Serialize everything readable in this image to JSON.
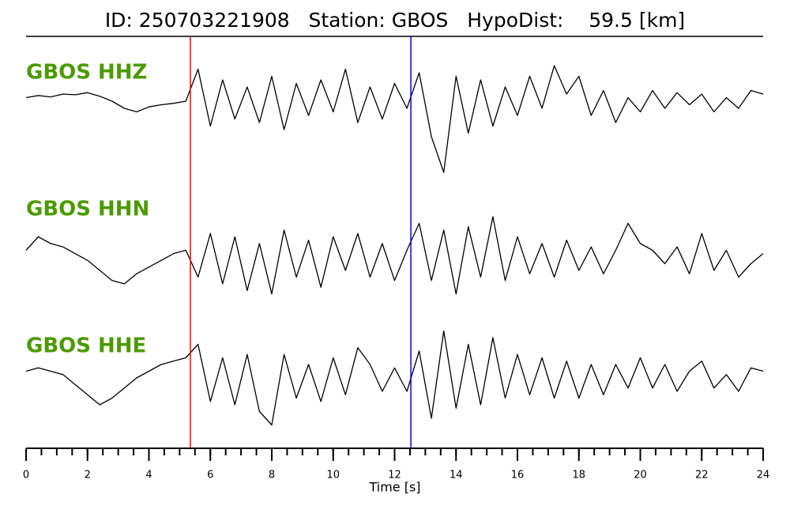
{
  "chart_data": {
    "type": "line",
    "title": "ID: 250703221908   Station: GBOS   HypoDist:    59.5 [km]",
    "xlabel": "Time [s]",
    "xlim": [
      0,
      24
    ],
    "xticks": [
      0,
      2,
      4,
      6,
      8,
      10,
      12,
      14,
      16,
      18,
      20,
      22,
      24
    ],
    "xminorticks": [
      0,
      0.5,
      1,
      1.5,
      2,
      2.5,
      3,
      3.5,
      4,
      4.5,
      5,
      5.5,
      6,
      6.5,
      7,
      7.5,
      8,
      8.5,
      9,
      9.5,
      10,
      10.5,
      11,
      11.5,
      12,
      12.5,
      13,
      13.5,
      14,
      14.5,
      15,
      15.5,
      16,
      16.5,
      17,
      17.5,
      18,
      18.5,
      19,
      19.5,
      20,
      20.5,
      21,
      21.5,
      22,
      22.5,
      23,
      23.5,
      24
    ],
    "ylim": [
      -1,
      1
    ],
    "label_color": "#4c9a00",
    "picks": [
      {
        "x": 5.35,
        "color": "#ff0000"
      },
      {
        "x": 12.53,
        "color": "#0000ff"
      }
    ],
    "x": [
      0,
      0.4,
      0.8,
      1.2,
      1.6,
      2,
      2.4,
      2.8,
      3.2,
      3.6,
      4,
      4.4,
      4.8,
      5.2,
      5.6,
      6,
      6.4,
      6.8,
      7.2,
      7.6,
      8,
      8.4,
      8.8,
      9.2,
      9.6,
      10,
      10.4,
      10.8,
      11.2,
      11.6,
      12,
      12.4,
      12.8,
      13.2,
      13.6,
      14,
      14.4,
      14.8,
      15.2,
      15.6,
      16,
      16.4,
      16.8,
      17.2,
      17.6,
      18,
      18.4,
      18.8,
      19.2,
      19.6,
      20,
      20.4,
      20.8,
      21.2,
      21.6,
      22,
      22.4,
      22.8,
      23.2,
      23.6,
      24
    ],
    "series": [
      {
        "name": "GBOS HHZ",
        "color": "#000000",
        "values": [
          0.05,
          0.08,
          0.06,
          0.1,
          0.09,
          0.12,
          0.07,
          0,
          -0.1,
          -0.15,
          -0.08,
          -0.05,
          -0.03,
          0,
          0.45,
          -0.35,
          0.3,
          -0.25,
          0.2,
          -0.3,
          0.35,
          -0.4,
          0.25,
          -0.2,
          0.3,
          -0.15,
          0.45,
          -0.3,
          0.2,
          -0.25,
          0.25,
          -0.1,
          0.4,
          -0.5,
          -1,
          0.35,
          -0.45,
          0.3,
          -0.35,
          0.2,
          -0.2,
          0.35,
          -0.1,
          0.5,
          0.1,
          0.35,
          -0.2,
          0.15,
          -0.3,
          0.05,
          -0.15,
          0.15,
          -0.1,
          0.12,
          -0.05,
          0.1,
          -0.15,
          0.05,
          -0.1,
          0.15,
          0.1
        ]
      },
      {
        "name": "GBOS HHN",
        "color": "#000000",
        "values": [
          0.1,
          0.3,
          0.2,
          0.15,
          0.05,
          -0.05,
          -0.2,
          -0.35,
          -0.4,
          -0.25,
          -0.15,
          -0.05,
          0.05,
          0.1,
          -0.3,
          0.35,
          -0.4,
          0.3,
          -0.5,
          0.2,
          -0.55,
          0.4,
          -0.3,
          0.25,
          -0.45,
          0.3,
          -0.2,
          0.35,
          -0.3,
          0.2,
          -0.35,
          0.1,
          0.5,
          -0.35,
          0.4,
          -0.55,
          0.45,
          -0.3,
          0.6,
          -0.35,
          0.3,
          -0.25,
          0.2,
          -0.3,
          0.25,
          -0.2,
          0.15,
          -0.25,
          0.1,
          0.5,
          0.2,
          0.1,
          -0.1,
          0.15,
          -0.25,
          0.35,
          -0.2,
          0.1,
          -0.3,
          -0.1,
          0.05
        ]
      },
      {
        "name": "GBOS HHE",
        "color": "#000000",
        "values": [
          0.1,
          0.15,
          0.1,
          0.05,
          -0.1,
          -0.25,
          -0.4,
          -0.3,
          -0.15,
          0,
          0.1,
          0.2,
          0.25,
          0.3,
          0.5,
          -0.35,
          0.3,
          -0.4,
          0.35,
          -0.5,
          -0.7,
          0.35,
          -0.3,
          0.2,
          -0.35,
          0.3,
          -0.25,
          0.45,
          0.2,
          -0.2,
          0.15,
          -0.2,
          0.4,
          -0.6,
          0.7,
          -0.45,
          0.5,
          -0.4,
          0.6,
          -0.3,
          0.35,
          -0.25,
          0.3,
          -0.3,
          0.25,
          -0.3,
          0.2,
          -0.25,
          0.2,
          -0.15,
          0.3,
          -0.15,
          0.2,
          -0.2,
          0.1,
          0.25,
          -0.15,
          0.05,
          -0.2,
          0.15,
          0.1
        ]
      }
    ]
  }
}
